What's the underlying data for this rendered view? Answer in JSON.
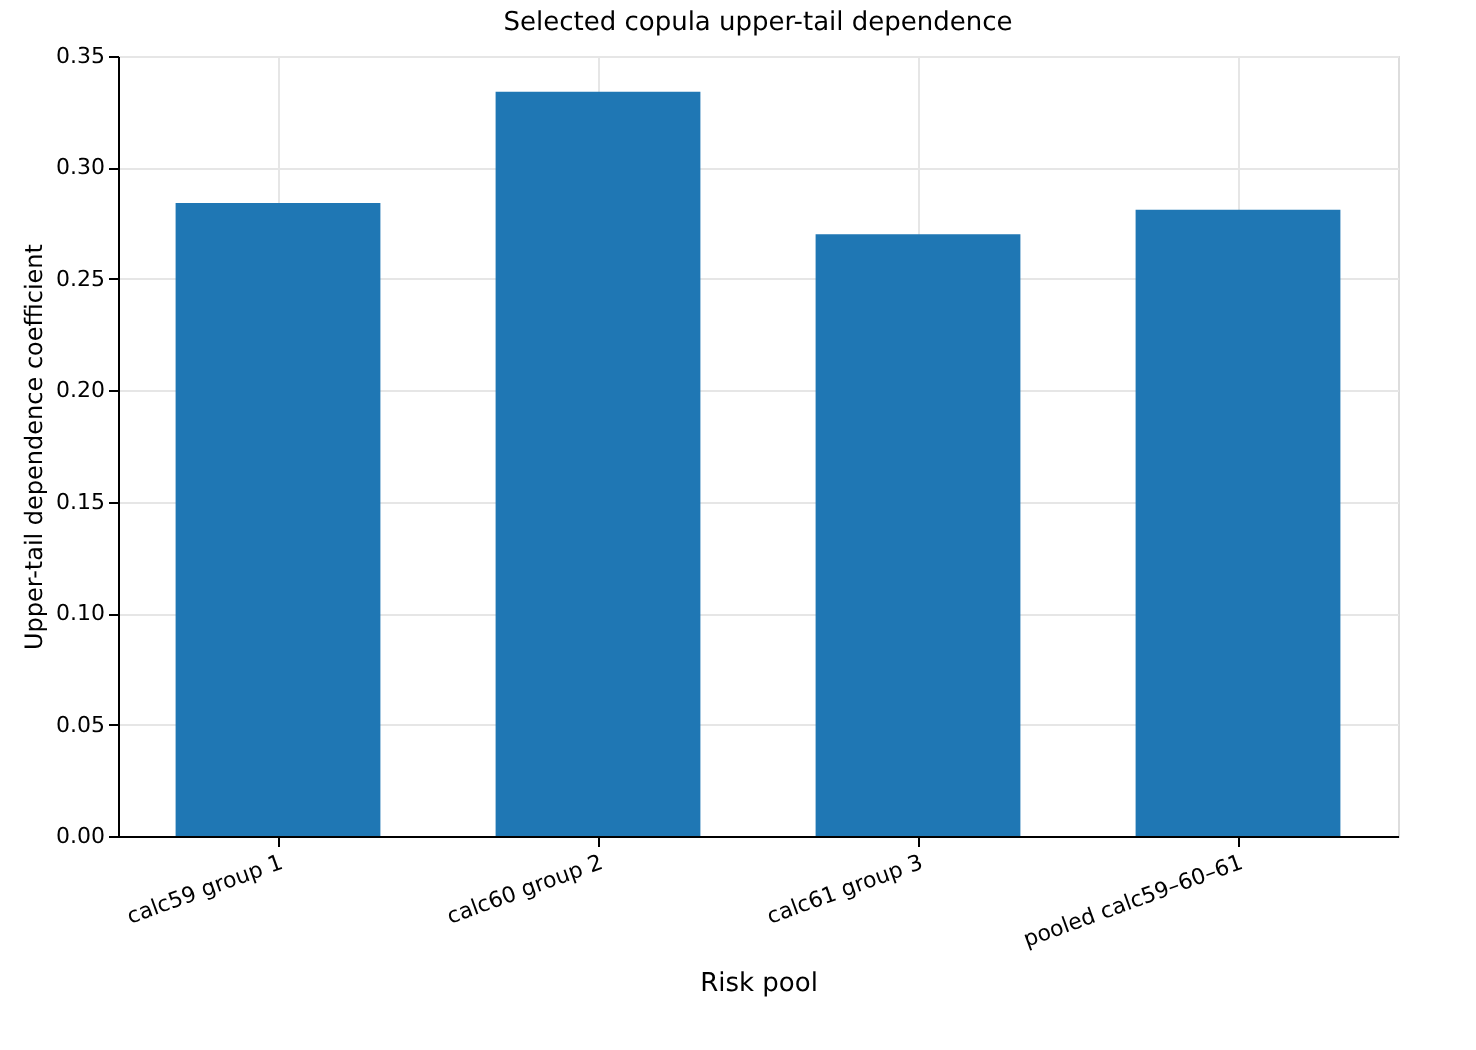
{
  "chart_data": {
    "type": "bar",
    "title": "Selected copula upper-tail dependence",
    "xlabel": "Risk pool",
    "ylabel": "Upper-tail dependence coefficient",
    "categories": [
      "calc59 group 1",
      "calc60 group 2",
      "calc61 group 3",
      "pooled calc59–60–61"
    ],
    "values": [
      0.284,
      0.334,
      0.27,
      0.281
    ],
    "color": "#1f77b4",
    "ylim": [
      0,
      0.35
    ],
    "yticks": [
      {
        "value": 0,
        "label": "0.00"
      },
      {
        "value": 0.05,
        "label": "0.05"
      },
      {
        "value": 0.1,
        "label": "0.10"
      },
      {
        "value": 0.15,
        "label": "0.15"
      },
      {
        "value": 0.2,
        "label": "0.20"
      },
      {
        "value": 0.25,
        "label": "0.25"
      },
      {
        "value": 0.3,
        "label": "0.30"
      },
      {
        "value": 0.35,
        "label": "0.35"
      }
    ],
    "grid": true
  }
}
